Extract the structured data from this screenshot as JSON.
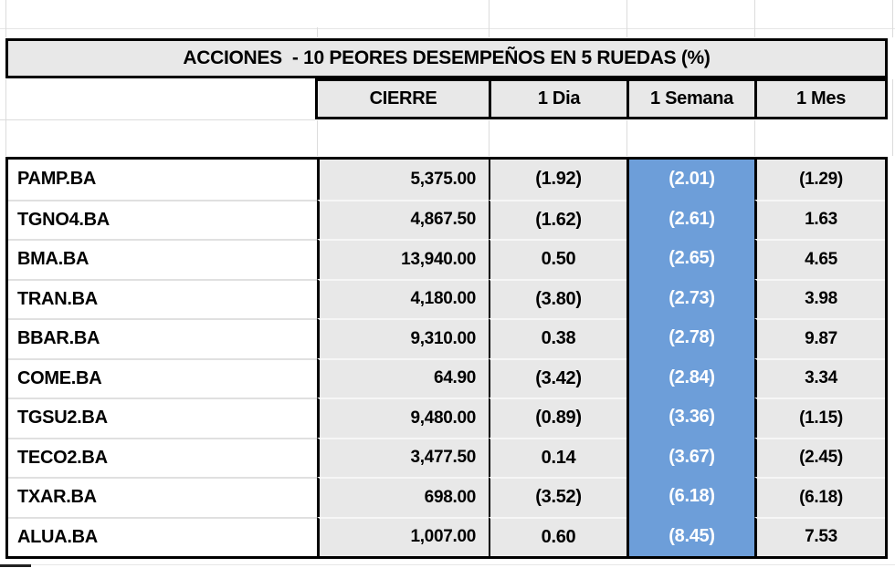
{
  "chart_data": {
    "type": "table",
    "title": "ACCIONES  - 10 PEORES DESEMPEÑOS EN 5 RUEDAS (%)",
    "columns": [
      "CIERRE",
      "1 Dia",
      "1 Semana",
      "1 Mes"
    ],
    "highlight_column": "1 Semana",
    "note_format": "values in parentheses are negative percentages",
    "rows": [
      [
        "PAMP.BA",
        "5,375.00",
        "(1.92)",
        "(2.01)",
        "(1.29)"
      ],
      [
        "TGNO4.BA",
        "4,867.50",
        "(1.62)",
        "(2.61)",
        "1.63"
      ],
      [
        "BMA.BA",
        "13,940.00",
        "0.50",
        "(2.65)",
        "4.65"
      ],
      [
        "TRAN.BA",
        "4,180.00",
        "(3.80)",
        "(2.73)",
        "3.98"
      ],
      [
        "BBAR.BA",
        "9,310.00",
        "0.38",
        "(2.78)",
        "9.87"
      ],
      [
        "COME.BA",
        "64.90",
        "(3.42)",
        "(2.84)",
        "3.34"
      ],
      [
        "TGSU2.BA",
        "9,480.00",
        "(0.89)",
        "(3.36)",
        "(1.15)"
      ],
      [
        "TECO2.BA",
        "3,477.50",
        "0.14",
        "(3.67)",
        "(2.45)"
      ],
      [
        "TXAR.BA",
        "698.00",
        "(3.52)",
        "(6.18)",
        "(6.18)"
      ],
      [
        "ALUA.BA",
        "1,007.00",
        "0.60",
        "(8.45)",
        "7.53"
      ]
    ],
    "numeric": {
      "tickers": [
        "PAMP.BA",
        "TGNO4.BA",
        "BMA.BA",
        "TRAN.BA",
        "BBAR.BA",
        "COME.BA",
        "TGSU2.BA",
        "TECO2.BA",
        "TXAR.BA",
        "ALUA.BA"
      ],
      "cierre": [
        5375.0,
        4867.5,
        13940.0,
        4180.0,
        9310.0,
        64.9,
        9480.0,
        3477.5,
        698.0,
        1007.0
      ],
      "dia_pct": [
        -1.92,
        -1.62,
        0.5,
        -3.8,
        0.38,
        -3.42,
        -0.89,
        0.14,
        -3.52,
        0.6
      ],
      "semana_pct": [
        -2.01,
        -2.61,
        -2.65,
        -2.73,
        -2.78,
        -2.84,
        -3.36,
        -3.67,
        -6.18,
        -8.45
      ],
      "mes_pct": [
        -1.29,
        1.63,
        4.65,
        3.98,
        9.87,
        3.34,
        -1.15,
        -2.45,
        -6.18,
        7.53
      ]
    }
  },
  "colors": {
    "header_fill": "#e8e8e8",
    "cell_fill": "#e8e8e8",
    "highlight_fill": "#6d9ed9",
    "highlight_text": "#ffffff",
    "border": "#000000",
    "gridline": "#dcdcdc"
  }
}
